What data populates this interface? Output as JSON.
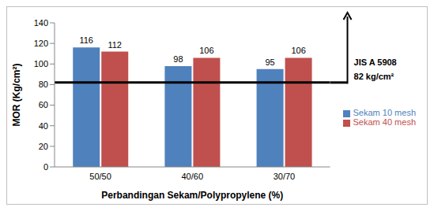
{
  "chart_data": {
    "type": "bar",
    "x_label": "Perbandingan Sekam/Polypropylene (%)",
    "y_label": "MOR (Kg/cm²)",
    "categories": [
      "50/50",
      "40/60",
      "30/70"
    ],
    "series": [
      {
        "name": "Sekam 10 mesh",
        "color": "#4f81bd",
        "values": [
          116,
          98,
          95
        ]
      },
      {
        "name": "Sekam 40 mesh",
        "color": "#c0504d",
        "values": [
          112,
          106,
          106
        ]
      }
    ],
    "ylim": [
      0,
      140
    ],
    "yticks": [
      0,
      20,
      40,
      60,
      80,
      100,
      120,
      140
    ],
    "grid": false,
    "legend": "right",
    "data_labels": true,
    "reference_value": 82,
    "annotations": [
      "JIS A 5908",
      "82 kg/cm²"
    ]
  }
}
